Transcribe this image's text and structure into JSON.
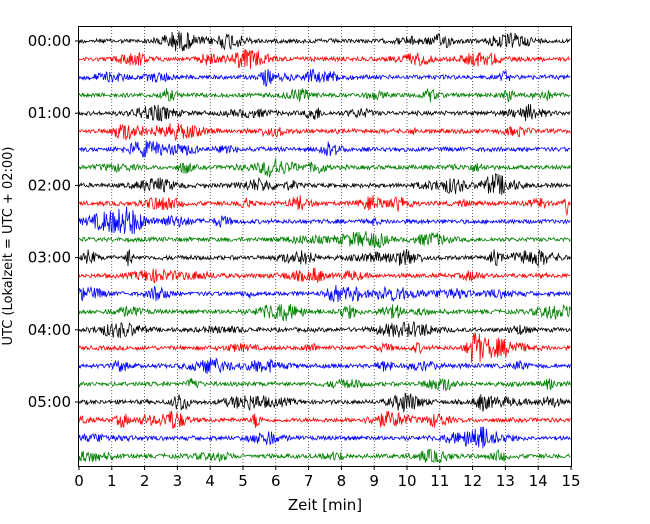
{
  "chart_data": {
    "type": "line",
    "subtype": "helicorder-seismogram",
    "xlabel": "Zeit  [min]",
    "ylabel": "UTC (Lokalzeit = UTC + 02:00)",
    "xlim": [
      0,
      15
    ],
    "x_ticks": [
      "0",
      "1",
      "2",
      "3",
      "4",
      "5",
      "6",
      "7",
      "8",
      "9",
      "10",
      "11",
      "12",
      "13",
      "14",
      "15"
    ],
    "y_ticks": [
      "00:00",
      "01:00",
      "02:00",
      "03:00",
      "04:00",
      "05:00"
    ],
    "grid": "vertical dotted lines at each minute",
    "minutes_per_line": 15,
    "line_count": 24,
    "line_colors": [
      "#000000",
      "#ff0000",
      "#0000ff",
      "#008000"
    ],
    "lines_start_utc": [
      "00:00",
      "00:15",
      "00:30",
      "00:45",
      "01:00",
      "01:15",
      "01:30",
      "01:45",
      "02:00",
      "02:15",
      "02:30",
      "02:45",
      "03:00",
      "03:15",
      "03:30",
      "03:45",
      "04:00",
      "04:15",
      "04:30",
      "04:45",
      "05:00",
      "05:15",
      "05:30",
      "05:45"
    ]
  }
}
